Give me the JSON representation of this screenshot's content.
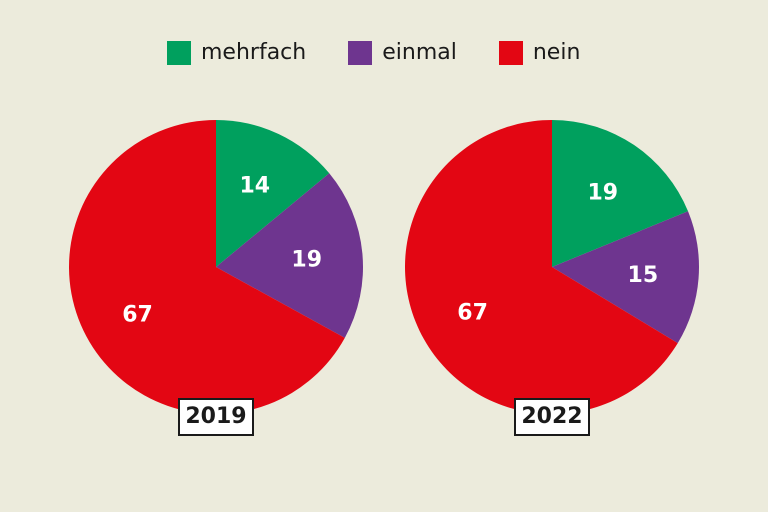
{
  "chart_data": {
    "type": "pie",
    "legend": [
      {
        "label": "mehrfach",
        "color": "#00a05e"
      },
      {
        "label": "einmal",
        "color": "#6e358f"
      },
      {
        "label": "nein",
        "color": "#e30613"
      }
    ],
    "legend_placement": "top",
    "charts": [
      {
        "title": "2019",
        "values": [
          14,
          19,
          67
        ]
      },
      {
        "title": "2022",
        "values": [
          19,
          15,
          67
        ]
      }
    ]
  }
}
